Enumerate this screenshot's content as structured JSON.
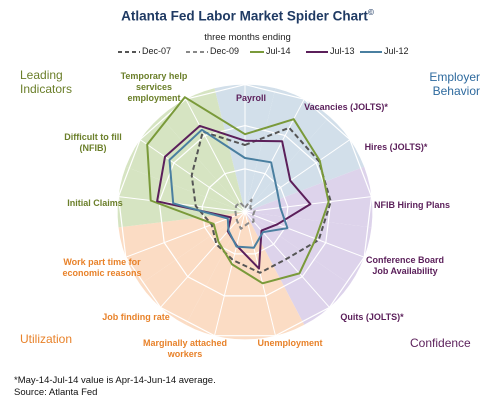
{
  "chart_data": {
    "type": "radar",
    "title": "Atlanta Fed Labor Market Spider Chart",
    "title_mark": "©",
    "subtitle": "three months ending",
    "grid": true,
    "legend_position": "top",
    "categories": [
      "Payroll",
      "Vacancies (JOLTS)*",
      "Hires (JOLTS)*",
      "NFIB Hiring Plans",
      "Conference Board Job Availability",
      "Quits (JOLTS)*",
      "Unemployment",
      "Marginally attached workers",
      "Job finding rate",
      "Work part time for economic reasons",
      "Initial Claims",
      "Difficult to fill (NFIB)",
      "Temporary help services employment"
    ],
    "category_label_lines": [
      [
        "Payroll"
      ],
      [
        "Vacancies (JOLTS)*"
      ],
      [
        "Hires (JOLTS)*"
      ],
      [
        "NFIB Hiring Plans"
      ],
      [
        "Conference Board",
        "Job Availability"
      ],
      [
        "Quits (JOLTS)*"
      ],
      [
        "Unemployment"
      ],
      [
        "Marginally attached",
        "workers"
      ],
      [
        "Job finding  rate"
      ],
      [
        "Work part time for",
        "economic reasons"
      ],
      [
        "Initial Claims"
      ],
      [
        "Difficult to fill",
        "(NFIB)"
      ],
      [
        "Temporary  help",
        "services",
        "employment"
      ]
    ],
    "category_groups": [
      "Employer Behavior",
      "Employer Behavior",
      "Employer Behavior",
      "Confidence",
      "Confidence",
      "Confidence",
      "Utilization",
      "Utilization",
      "Utilization",
      "Utilization",
      "Leading Indicators",
      "Leading Indicators",
      "Leading Indicators"
    ],
    "series": [
      {
        "name": "Dec-07",
        "color": "#555555",
        "dash": "dashed",
        "values": [
          0.62,
          0.88,
          0.83,
          0.8,
          0.73,
          0.58,
          0.58,
          0.46,
          0.4,
          0.33,
          0.46,
          0.6,
          0.84
        ]
      },
      {
        "name": "Dec-09",
        "color": "#888888",
        "dash": "dashed",
        "values": [
          0.04,
          0.13,
          0.06,
          0.09,
          0.08,
          0.12,
          0.11,
          0.16,
          0.11,
          0.09,
          0.09,
          0.1,
          0.1
        ]
      },
      {
        "name": "Jul-14",
        "color": "#7a9a3a",
        "dash": "solid",
        "values": [
          0.72,
          0.97,
          0.84,
          0.78,
          0.7,
          0.76,
          0.68,
          0.5,
          0.37,
          0.31,
          0.88,
          1.1,
          1.2
        ]
      },
      {
        "name": "Jul-13",
        "color": "#5b1f5a",
        "dash": "solid",
        "values": [
          0.66,
          0.74,
          0.51,
          0.61,
          0.32,
          0.23,
          0.54,
          0.32,
          0.24,
          0.14,
          0.82,
          0.9,
          0.9
        ]
      },
      {
        "name": "Jul-12",
        "color": "#4a7fa0",
        "dash": "solid",
        "values": [
          0.5,
          0.52,
          0.36,
          0.33,
          0.42,
          0.25,
          0.34,
          0.33,
          0.23,
          0.17,
          0.67,
          0.85,
          0.86
        ]
      }
    ],
    "group_colors": {
      "Leading Indicators": "#d6e4c2",
      "Employer Behavior": "#d2dfea",
      "Confidence": "#ddd3eb",
      "Utilization": "#fbdcc4"
    }
  },
  "corner_labels": {
    "top_left": [
      "Leading",
      "Indicators"
    ],
    "top_right": [
      "Employer",
      "Behavior"
    ],
    "bottom_left": [
      "Utilization"
    ],
    "bottom_right": [
      "Confidence"
    ]
  },
  "colors": {
    "title": "#1f3a63",
    "leading": "#6b7f2a",
    "employer": "#2e6a9e",
    "confidence": "#5b1f5a",
    "utilization": "#e8822a"
  },
  "footnote": {
    "line1": "*May-14-Jul-14 value is Apr-14-Jun-14 average.",
    "line2": "Source: Atlanta Fed"
  }
}
